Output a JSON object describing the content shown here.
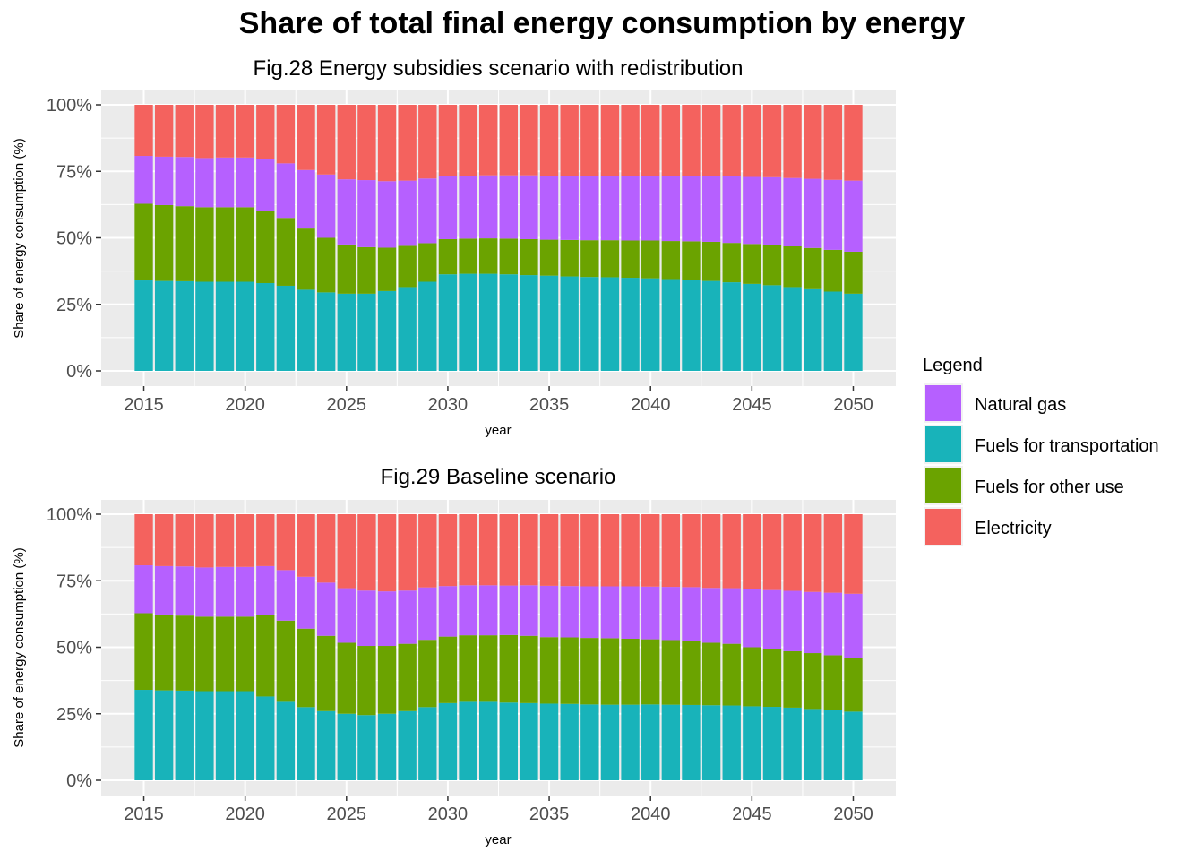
{
  "title": "Share of total final energy consumption by energy",
  "legend": {
    "title": "Legend",
    "items": [
      {
        "label": "Natural gas",
        "color": "#B660FF"
      },
      {
        "label": "Fuels for transportation",
        "color": "#18B3BA"
      },
      {
        "label": "Fuels for other use",
        "color": "#6BA300"
      },
      {
        "label": "Electricity",
        "color": "#F4625E"
      }
    ]
  },
  "chart_data": [
    {
      "type": "bar",
      "stacked": true,
      "title": "Fig.28 Energy subsidies scenario with redistribution",
      "xlabel": "year",
      "ylabel": "Share of energy consumption (%)",
      "ylim": [
        0,
        1
      ],
      "y_ticks": [
        "0%",
        "25%",
        "50%",
        "75%",
        "100%"
      ],
      "x_ticks": [
        "2015",
        "2020",
        "2025",
        "2030",
        "2035",
        "2040",
        "2045",
        "2050"
      ],
      "grid": true,
      "categories": [
        2015,
        2016,
        2017,
        2018,
        2019,
        2020,
        2021,
        2022,
        2023,
        2024,
        2025,
        2026,
        2027,
        2028,
        2029,
        2030,
        2031,
        2032,
        2033,
        2034,
        2035,
        2036,
        2037,
        2038,
        2039,
        2040,
        2041,
        2042,
        2043,
        2044,
        2045,
        2046,
        2047,
        2048,
        2049,
        2050
      ],
      "series": [
        {
          "name": "Fuels for transportation",
          "color": "#18B3BA",
          "values": [
            0.34,
            0.338,
            0.337,
            0.335,
            0.335,
            0.335,
            0.33,
            0.32,
            0.305,
            0.295,
            0.29,
            0.29,
            0.3,
            0.315,
            0.335,
            0.363,
            0.365,
            0.365,
            0.363,
            0.36,
            0.358,
            0.355,
            0.353,
            0.352,
            0.35,
            0.348,
            0.345,
            0.342,
            0.338,
            0.333,
            0.327,
            0.322,
            0.315,
            0.307,
            0.298,
            0.29
          ]
        },
        {
          "name": "Fuels for other use",
          "color": "#6BA300",
          "values": [
            0.288,
            0.285,
            0.282,
            0.28,
            0.28,
            0.28,
            0.27,
            0.255,
            0.23,
            0.205,
            0.185,
            0.175,
            0.163,
            0.155,
            0.145,
            0.132,
            0.132,
            0.133,
            0.134,
            0.135,
            0.135,
            0.137,
            0.138,
            0.139,
            0.14,
            0.142,
            0.143,
            0.145,
            0.147,
            0.148,
            0.15,
            0.152,
            0.153,
            0.155,
            0.157,
            0.158
          ]
        },
        {
          "name": "Natural gas",
          "color": "#B660FF",
          "values": [
            0.18,
            0.182,
            0.185,
            0.185,
            0.187,
            0.187,
            0.195,
            0.205,
            0.22,
            0.238,
            0.245,
            0.252,
            0.25,
            0.245,
            0.243,
            0.238,
            0.237,
            0.237,
            0.238,
            0.24,
            0.24,
            0.241,
            0.242,
            0.243,
            0.244,
            0.244,
            0.246,
            0.247,
            0.248,
            0.25,
            0.252,
            0.254,
            0.257,
            0.26,
            0.263,
            0.267
          ]
        },
        {
          "name": "Electricity",
          "color": "#F4625E",
          "values": [
            0.192,
            0.195,
            0.196,
            0.2,
            0.198,
            0.198,
            0.205,
            0.22,
            0.245,
            0.262,
            0.28,
            0.283,
            0.287,
            0.285,
            0.277,
            0.267,
            0.266,
            0.265,
            0.265,
            0.265,
            0.267,
            0.267,
            0.267,
            0.266,
            0.266,
            0.266,
            0.266,
            0.266,
            0.267,
            0.269,
            0.271,
            0.272,
            0.275,
            0.278,
            0.282,
            0.285
          ]
        }
      ]
    },
    {
      "type": "bar",
      "stacked": true,
      "title": "Fig.29  Baseline scenario",
      "xlabel": "year",
      "ylabel": "Share of energy consumption (%)",
      "ylim": [
        0,
        1
      ],
      "y_ticks": [
        "0%",
        "25%",
        "50%",
        "75%",
        "100%"
      ],
      "x_ticks": [
        "2015",
        "2020",
        "2025",
        "2030",
        "2035",
        "2040",
        "2045",
        "2050"
      ],
      "grid": true,
      "categories": [
        2015,
        2016,
        2017,
        2018,
        2019,
        2020,
        2021,
        2022,
        2023,
        2024,
        2025,
        2026,
        2027,
        2028,
        2029,
        2030,
        2031,
        2032,
        2033,
        2034,
        2035,
        2036,
        2037,
        2038,
        2039,
        2040,
        2041,
        2042,
        2043,
        2044,
        2045,
        2046,
        2047,
        2048,
        2049,
        2050
      ],
      "series": [
        {
          "name": "Fuels for transportation",
          "color": "#18B3BA",
          "values": [
            0.34,
            0.338,
            0.337,
            0.335,
            0.335,
            0.335,
            0.315,
            0.295,
            0.275,
            0.26,
            0.25,
            0.245,
            0.25,
            0.26,
            0.275,
            0.29,
            0.295,
            0.295,
            0.292,
            0.29,
            0.288,
            0.287,
            0.285,
            0.284,
            0.284,
            0.285,
            0.284,
            0.283,
            0.282,
            0.281,
            0.278,
            0.276,
            0.273,
            0.268,
            0.263,
            0.258
          ]
        },
        {
          "name": "Fuels for other use",
          "color": "#6BA300",
          "values": [
            0.288,
            0.285,
            0.282,
            0.28,
            0.28,
            0.28,
            0.305,
            0.305,
            0.295,
            0.283,
            0.267,
            0.26,
            0.255,
            0.253,
            0.253,
            0.25,
            0.25,
            0.25,
            0.254,
            0.253,
            0.25,
            0.25,
            0.25,
            0.25,
            0.248,
            0.245,
            0.243,
            0.24,
            0.235,
            0.232,
            0.222,
            0.218,
            0.212,
            0.21,
            0.207,
            0.203
          ]
        },
        {
          "name": "Natural gas",
          "color": "#B660FF",
          "values": [
            0.18,
            0.182,
            0.185,
            0.185,
            0.187,
            0.187,
            0.185,
            0.19,
            0.195,
            0.2,
            0.205,
            0.208,
            0.205,
            0.2,
            0.197,
            0.19,
            0.188,
            0.188,
            0.186,
            0.19,
            0.193,
            0.193,
            0.194,
            0.195,
            0.197,
            0.198,
            0.2,
            0.203,
            0.206,
            0.209,
            0.218,
            0.221,
            0.227,
            0.23,
            0.235,
            0.24
          ]
        },
        {
          "name": "Electricity",
          "color": "#F4625E",
          "values": [
            0.192,
            0.195,
            0.196,
            0.2,
            0.198,
            0.198,
            0.195,
            0.21,
            0.235,
            0.257,
            0.278,
            0.287,
            0.29,
            0.287,
            0.275,
            0.27,
            0.267,
            0.267,
            0.268,
            0.267,
            0.269,
            0.27,
            0.271,
            0.271,
            0.271,
            0.272,
            0.273,
            0.274,
            0.277,
            0.278,
            0.282,
            0.285,
            0.288,
            0.292,
            0.295,
            0.299
          ]
        }
      ]
    }
  ]
}
